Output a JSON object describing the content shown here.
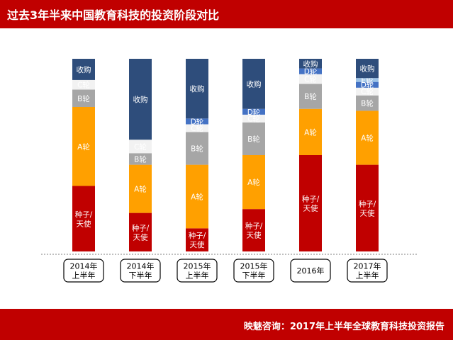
{
  "title": "过去3年半来中国教育科技的投资阶段对比",
  "source": "映魅咨询：2017年上半年全球教育科技投资报告",
  "chart_data": {
    "type": "bar",
    "stacked": true,
    "normalized_to_percent": true,
    "categories": [
      [
        "2014年",
        "上半年"
      ],
      [
        "2014年",
        "下半年"
      ],
      [
        "2015年",
        "上半年"
      ],
      [
        "2015年",
        "下半年"
      ],
      [
        "2016年"
      ],
      [
        "2017年",
        "上半年"
      ]
    ],
    "series": [
      {
        "name": [
          "种子/",
          "天使"
        ],
        "color": "#c00000",
        "text_color": "#ffffff",
        "values": [
          34,
          20,
          12,
          22,
          50,
          45
        ]
      },
      {
        "name": [
          "A轮"
        ],
        "color": "#ffa000",
        "text_color": "#ffffff",
        "values": [
          41,
          25,
          33,
          28,
          24,
          28
        ]
      },
      {
        "name": [
          "B轮"
        ],
        "color": "#a6a6a6",
        "text_color": "#000000",
        "values": [
          9,
          6,
          17,
          17,
          13,
          8
        ]
      },
      {
        "name": [
          "C轮"
        ],
        "color": "#f2f2f2",
        "text_color": "#000000",
        "values": [
          5,
          7,
          4,
          4,
          5,
          4
        ]
      },
      {
        "name": [
          "D轮"
        ],
        "color": "#4472c4",
        "text_color": "#000000",
        "values": [
          0,
          0,
          3,
          3,
          3,
          3
        ]
      },
      {
        "name": [
          "E轮"
        ],
        "color": "#9dc3e6",
        "text_color": "#000000",
        "values": [
          0,
          0,
          0,
          0,
          0,
          2
        ]
      },
      {
        "name": [
          "收购"
        ],
        "color": "#2e4d7b",
        "text_color": "#ffffff",
        "values": [
          11,
          42,
          31,
          26,
          5,
          10
        ]
      }
    ]
  }
}
